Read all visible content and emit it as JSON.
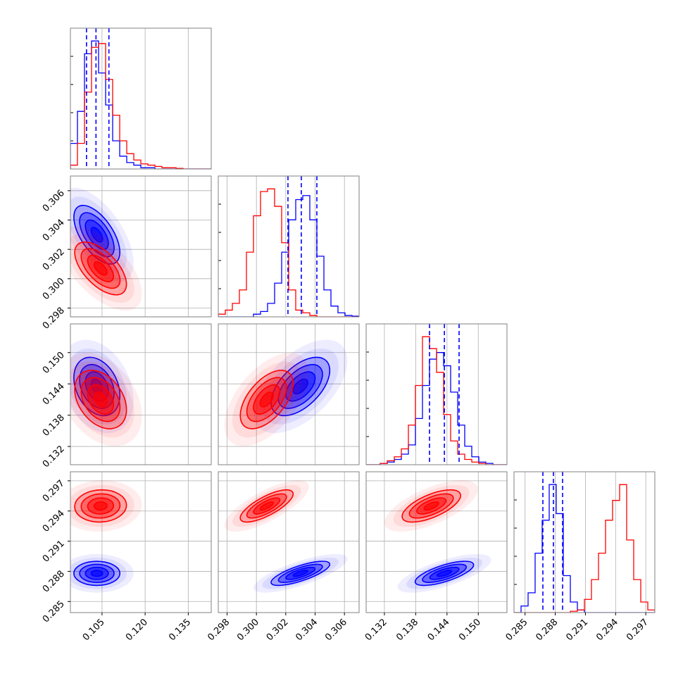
{
  "chart_data": {
    "type": "corner",
    "params": [
      {
        "lim": [
          0.094,
          0.143
        ],
        "ticks": [
          0.105,
          {
            "value": 0.12,
            "label": "0.120"
          },
          0.135
        ],
        "bins": [
          0.094,
          0.09645,
          0.0989,
          0.10135,
          0.1038,
          0.10625,
          0.1087,
          0.11115,
          0.1136,
          0.11605,
          0.1185,
          0.12095,
          0.1234,
          0.12585,
          0.1283,
          0.13075,
          0.1332,
          0.13565,
          0.1381,
          0.14055,
          0.143
        ]
      },
      {
        "lim": [
          0.2974,
          0.307
        ],
        "ticks": [
          0.298,
          {
            "value": 0.3,
            "label": "0.300"
          },
          0.302,
          0.304,
          0.306
        ],
        "bins": [
          0.2974,
          0.29788,
          0.29836,
          0.29884,
          0.29932,
          0.2998,
          0.30028,
          0.30076,
          0.30124,
          0.30172,
          0.3022,
          0.30268,
          0.30316,
          0.30364,
          0.30412,
          0.3046,
          0.30508,
          0.30556,
          0.30604,
          0.30652,
          0.307
        ]
      },
      {
        "lim": [
          0.1285,
          0.1555
        ],
        "ticks": [
          0.132,
          0.138,
          0.144,
          {
            "value": 0.15,
            "label": "0.150"
          }
        ],
        "bins": [
          0.1285,
          0.12985,
          0.1312,
          0.13255,
          0.1339,
          0.13525,
          0.1366,
          0.13795,
          0.1393,
          0.14065,
          0.142,
          0.14335,
          0.1447,
          0.14605,
          0.1474,
          0.14875,
          0.1501,
          0.15145,
          0.1528,
          0.15415,
          0.1555
        ]
      },
      {
        "lim": [
          0.2839,
          0.2979
        ],
        "ticks": [
          0.285,
          0.288,
          0.291,
          0.294,
          0.297
        ],
        "bins": [
          0.2839,
          0.2846,
          0.2853,
          0.286,
          0.2867,
          0.2874,
          0.2881,
          0.2888,
          0.2895,
          0.2902,
          0.2909,
          0.2916,
          0.2923,
          0.293,
          0.2937,
          0.2944,
          0.2951,
          0.2958,
          0.2965,
          0.2972,
          0.2979
        ]
      }
    ],
    "series": [
      {
        "color": "#0000ff",
        "mean": [
          0.1032,
          0.303,
          0.1435,
          0.2878
        ],
        "sd": [
          0.004,
          0.001,
          0.0028,
          0.0006
        ],
        "corr": {
          "10": -0.6,
          "20": -0.3,
          "21": 0.55,
          "30": 0.0,
          "31": 0.75,
          "32": 0.7
        },
        "hist": [
          [
            0.2,
            0.45,
            0.9,
            1.0,
            0.75,
            0.5,
            0.22,
            0.1,
            0.05,
            0.03,
            0.01,
            0.01,
            0,
            0,
            0,
            0,
            0,
            0,
            0,
            0
          ],
          [
            0,
            0,
            0,
            0,
            0,
            0.02,
            0.04,
            0.1,
            0.25,
            0.48,
            0.72,
            0.87,
            0.9,
            0.72,
            0.45,
            0.2,
            0.08,
            0.03,
            0.01,
            0.005
          ],
          [
            0,
            0,
            0.01,
            0.02,
            0.04,
            0.08,
            0.15,
            0.35,
            0.6,
            0.8,
            0.85,
            0.75,
            0.55,
            0.3,
            0.14,
            0.06,
            0.02,
            0.01,
            0,
            0
          ],
          [
            0,
            0.05,
            0.15,
            0.45,
            0.7,
            0.97,
            0.75,
            0.28,
            0.08,
            0.02,
            0,
            0,
            0,
            0,
            0,
            0,
            0,
            0,
            0,
            0
          ]
        ],
        "quantiles": [
          [
            0.0996,
            0.1029,
            0.1074
          ],
          [
            0.30215,
            0.30306,
            0.30412
          ],
          [
            0.14065,
            0.1435,
            0.14632
          ],
          [
            0.28677,
            0.28782,
            0.28873
          ]
        ]
      },
      {
        "color": "#ff0000",
        "mean": [
          0.1045,
          0.3007,
          0.141,
          0.2945
        ],
        "sd": [
          0.0045,
          0.0009,
          0.0028,
          0.0008
        ],
        "corr": {
          "10": -0.6,
          "20": -0.35,
          "21": 0.55,
          "30": 0.05,
          "31": 0.75,
          "32": 0.65
        },
        "hist": [
          [
            0.03,
            0.2,
            0.6,
            0.95,
            0.98,
            0.7,
            0.42,
            0.22,
            0.12,
            0.07,
            0.04,
            0.03,
            0.02,
            0.01,
            0.01,
            0.005,
            0,
            0,
            0,
            0
          ],
          [
            0.02,
            0.05,
            0.1,
            0.2,
            0.48,
            0.75,
            0.93,
            0.95,
            0.82,
            0.55,
            0.2,
            0.05,
            0.03,
            0.01,
            0,
            0,
            0,
            0,
            0,
            0
          ],
          [
            0,
            0,
            0.01,
            0.03,
            0.06,
            0.12,
            0.3,
            0.6,
            0.97,
            0.88,
            0.7,
            0.38,
            0.18,
            0.08,
            0.04,
            0.02,
            0.01,
            0,
            0,
            0
          ],
          [
            0,
            0,
            0,
            0,
            0,
            0,
            0,
            0,
            0.01,
            0.02,
            0.1,
            0.25,
            0.45,
            0.7,
            0.85,
            0.97,
            0.55,
            0.25,
            0.08,
            0.02
          ]
        ]
      }
    ],
    "contour_levels": [
      0.5,
      1,
      1.5,
      2
    ],
    "grid": true
  }
}
